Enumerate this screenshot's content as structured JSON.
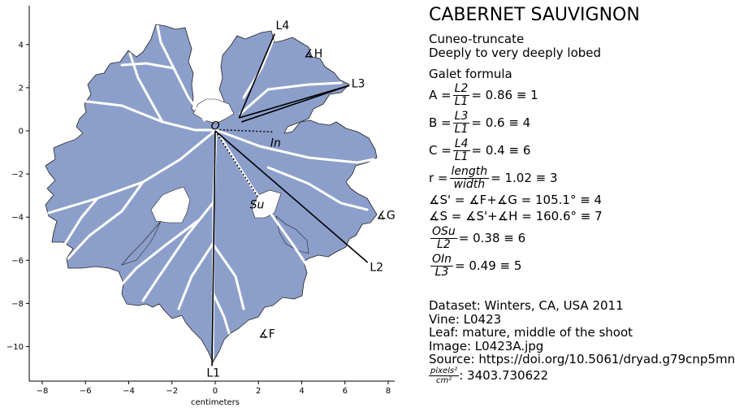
{
  "chart_data": {
    "type": "scatter",
    "title": "",
    "xlabel": "centimeters",
    "ylabel": "",
    "xlim": [
      -8.6,
      8.3
    ],
    "ylim": [
      -11.6,
      5.8
    ],
    "xticks": [
      -8,
      -6,
      -4,
      -2,
      0,
      2,
      4,
      6,
      8
    ],
    "yticks": [
      4,
      2,
      0,
      -2,
      -4,
      -6,
      -8,
      -10
    ],
    "xtick_labels": [
      "−8",
      "−6",
      "−4",
      "−2",
      "0",
      "2",
      "4",
      "6",
      "8"
    ],
    "ytick_labels": [
      "4",
      "2",
      "0",
      "−2",
      "−4",
      "−6",
      "−8",
      "−10"
    ],
    "leaf_fill": "#8c9fcb",
    "vein_color": "#ffffff",
    "landmarks": [
      {
        "name": "O",
        "x": 0.0,
        "y": 0.0
      },
      {
        "name": "L1",
        "x": -0.15,
        "y": -10.9
      },
      {
        "name": "L2",
        "x": 7.05,
        "y": -6.1
      },
      {
        "name": "L3",
        "x": 6.2,
        "y": 2.1
      },
      {
        "name": "L4",
        "x": 2.75,
        "y": 4.5
      },
      {
        "name": "In",
        "x": 2.65,
        "y": 0.0
      },
      {
        "name": "Su",
        "x": 2.0,
        "y": -3.1
      }
    ],
    "segments": [
      {
        "from": [
          0,
          0
        ],
        "to": [
          -0.15,
          -10.9
        ],
        "style": "solid"
      },
      {
        "from": [
          0,
          0
        ],
        "to": [
          7.05,
          -6.1
        ],
        "style": "solid"
      },
      {
        "from": [
          1.1,
          0.6
        ],
        "to": [
          6.2,
          2.1
        ],
        "style": "solid"
      },
      {
        "from": [
          1.1,
          0.6
        ],
        "to": [
          2.75,
          4.5
        ],
        "style": "solid"
      },
      {
        "from": [
          1.1,
          0.6
        ],
        "to": [
          6.2,
          2.1
        ],
        "style": "solid-offset"
      },
      {
        "from": [
          0.2,
          0.05
        ],
        "to": [
          2.65,
          -0.05
        ],
        "style": "dotted"
      },
      {
        "from": [
          0.0,
          0.0
        ],
        "to": [
          2.0,
          -3.1
        ],
        "style": "dotted"
      }
    ],
    "annotations": [
      {
        "text": "L4",
        "x": 2.8,
        "y": 4.9
      },
      {
        "text": "∡H",
        "x": 4.1,
        "y": 3.6
      },
      {
        "text": "L3",
        "x": 6.3,
        "y": 2.2
      },
      {
        "text": "O",
        "x": -0.2,
        "y": 0.25
      },
      {
        "text": "In",
        "x": 2.55,
        "y": -0.55
      },
      {
        "text": "Su",
        "x": 1.6,
        "y": -3.4
      },
      {
        "text": "∡G",
        "x": 7.45,
        "y": -3.9
      },
      {
        "text": "L2",
        "x": 7.15,
        "y": -6.3
      },
      {
        "text": "∡F",
        "x": 2.0,
        "y": -9.4
      },
      {
        "text": "L1",
        "x": -0.4,
        "y": -11.2
      }
    ]
  },
  "info": {
    "title": "CABERNET SAUVIGNON",
    "descriptor1": "Cuneo-truncate",
    "descriptor2": "Deeply to very deeply lobed",
    "galet_heading": "Galet formula",
    "formulas": [
      {
        "lhs": "A = ",
        "num": "L2",
        "den": "L1",
        "rhs": " = 0.86 ≡ 1"
      },
      {
        "lhs": "B = ",
        "num": "L3",
        "den": "L1",
        "rhs": " = 0.6 ≡ 4"
      },
      {
        "lhs": "C = ",
        "num": "L4",
        "den": "L1",
        "rhs": " = 0.4 ≡ 6"
      },
      {
        "lhs": "r = ",
        "num": "length",
        "den": "width",
        "rhs": " = 1.02 ≡ 3"
      }
    ],
    "angle_s_prime": "∡S' = ∡F+∡G = 105.1° ≡ 4",
    "angle_s": "∡S = ∡S'+∡H = 160.6° ≡ 7",
    "osu": {
      "num": "OSu",
      "den": "L2",
      "rhs": " = 0.38 ≡ 6"
    },
    "oin": {
      "num": "OIn",
      "den": "L3",
      "rhs": " = 0.49 ≡ 5"
    }
  },
  "source": {
    "dataset": "Dataset: Winters, CA, USA 2011",
    "vine": "Vine: L0423",
    "leaf": "Leaf: mature, middle of the shoot",
    "image": "Image: L0423A.jpg",
    "source": "Source: https://doi.org/10.5061/dryad.g79cnp5mn",
    "scale_num": "pixels²",
    "scale_den": "cm²",
    "scale_value": ": 3403.730622"
  }
}
